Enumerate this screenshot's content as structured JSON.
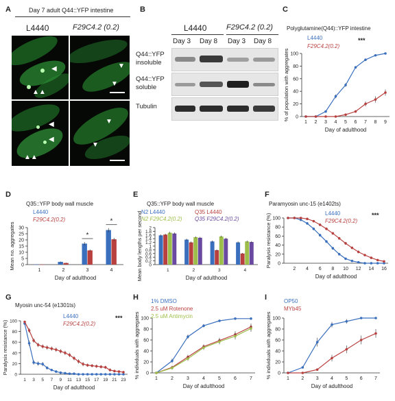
{
  "panelA": {
    "label": "A",
    "title": "Day 7 adult Q44::YFP intestine",
    "col1": "L4440",
    "col2": "F29C4.2 (0.2)"
  },
  "panelB": {
    "label": "B",
    "group1": "L4440",
    "group2": "F29C4.2 (0.2)",
    "lanes": [
      "Day 3",
      "Day 8",
      "Day 3",
      "Day 8"
    ],
    "rows": [
      "Q44::YFP insoluble",
      "Q44::YFP soluble",
      "Tubulin"
    ]
  },
  "colors": {
    "blue": "#3a6fbe",
    "red": "#b8403f",
    "green": "#9dbf4a",
    "purple": "#6a4aa0",
    "grey": "#9a9a9a"
  },
  "chart_data": [
    {
      "panel": "C",
      "type": "line",
      "title": "Polyglutamine(Q44)::YFP intestine",
      "xlabel": "Day of adulthood",
      "ylabel": "% of population with aggregates",
      "x": [
        1,
        2,
        3,
        4,
        5,
        6,
        7,
        8,
        9
      ],
      "ylim": [
        0,
        100
      ],
      "yticks": [
        0,
        20,
        40,
        60,
        80,
        100
      ],
      "significance": "***",
      "series": [
        {
          "name": "L4440",
          "color": "#3a6fbe",
          "values": [
            0,
            0,
            8,
            32,
            50,
            78,
            90,
            97,
            100
          ],
          "err": [
            0,
            0,
            1,
            3,
            3,
            2,
            1,
            1,
            0
          ]
        },
        {
          "name": "F29C4.2(0.2)",
          "color": "#b8403f",
          "values": [
            0,
            0,
            0,
            0,
            3,
            8,
            20,
            27,
            38
          ],
          "err": [
            0,
            0,
            0,
            0,
            1,
            2,
            4,
            5,
            5
          ]
        }
      ]
    },
    {
      "panel": "D",
      "type": "bar",
      "title": "Q35::YFP body wall muscle",
      "xlabel": "Day of adulthood",
      "ylabel": "Mean no. aggregates",
      "categories": [
        "1",
        "2",
        "3",
        "4"
      ],
      "ylim": [
        0,
        30
      ],
      "yticks": [
        0,
        5,
        10,
        15,
        20,
        25,
        30
      ],
      "significance": [
        "",
        "",
        "*",
        "*"
      ],
      "series": [
        {
          "name": "L4440",
          "color": "#3a6fbe",
          "values": [
            0.1,
            2.2,
            17,
            28
          ],
          "err": [
            0.1,
            0.3,
            1.3,
            1.6
          ]
        },
        {
          "name": "F29C4.2(0.2)",
          "color": "#b8403f",
          "values": [
            0.1,
            1.3,
            11.5,
            20.5
          ],
          "err": [
            0.1,
            0.3,
            0.8,
            1.2
          ]
        }
      ]
    },
    {
      "panel": "E",
      "type": "bar",
      "title": "Q35::YFP body wall muscle",
      "xlabel": "Day of adulthood",
      "ylabel": "Mean body lengths per second",
      "categories": [
        "1",
        "2",
        "3",
        "4"
      ],
      "ylim": [
        0,
        2.0
      ],
      "yticks": [
        0,
        0.2,
        0.4,
        0.6,
        0.8,
        1.0,
        1.2,
        1.4,
        1.6,
        1.8,
        2.0
      ],
      "series": [
        {
          "name": "N2 L4440",
          "color": "#3a6fbe",
          "values": [
            1.58,
            1.35,
            1.25,
            1.2
          ],
          "err": [
            0.05,
            0.05,
            0.05,
            0.05
          ]
        },
        {
          "name": "Q35 L4440",
          "color": "#b8403f",
          "values": [
            1.62,
            1.2,
            0.78,
            0.6
          ],
          "err": [
            0.05,
            0.05,
            0.04,
            0.03
          ]
        },
        {
          "name": "N2 F29C4.2(0.2)",
          "color": "#9dbf4a",
          "values": [
            1.72,
            1.48,
            1.52,
            1.25
          ],
          "err": [
            0.06,
            0.05,
            0.05,
            0.05
          ]
        },
        {
          "name": "Q35 F29C4.2(0.2)",
          "color": "#6a4aa0",
          "values": [
            1.68,
            1.45,
            1.4,
            1.22
          ],
          "err": [
            0.06,
            0.05,
            0.05,
            0.05
          ]
        }
      ]
    },
    {
      "panel": "F",
      "type": "line",
      "title": "Paramyosin unc-15 (e1402ts)",
      "xlabel": "Day of adulthood",
      "ylabel": "Paralysis resistance (%)",
      "x": [
        1,
        2,
        3,
        4,
        5,
        6,
        7,
        8,
        9,
        10,
        11,
        12,
        13,
        14,
        15,
        16
      ],
      "xticks": [
        2,
        4,
        6,
        8,
        10,
        12,
        14,
        16
      ],
      "ylim": [
        0,
        100
      ],
      "yticks": [
        0,
        20,
        40,
        60,
        80,
        100
      ],
      "significance": "***",
      "series": [
        {
          "name": "L4440",
          "color": "#3a6fbe",
          "values": [
            100,
            100,
            96,
            88,
            76,
            62,
            48,
            33,
            20,
            10,
            5,
            2,
            0,
            0,
            0,
            0
          ],
          "err": [
            0,
            0,
            2,
            3,
            3,
            3,
            3,
            3,
            3,
            2,
            2,
            1,
            0,
            0,
            0,
            0
          ]
        },
        {
          "name": "F29C4.2(0.2)",
          "color": "#b8403f",
          "values": [
            100,
            100,
            100,
            98,
            93,
            85,
            76,
            66,
            55,
            44,
            34,
            25,
            18,
            12,
            7,
            4
          ],
          "err": [
            0,
            0,
            0,
            1,
            2,
            3,
            3,
            3,
            3,
            3,
            3,
            3,
            2,
            2,
            2,
            1
          ]
        }
      ]
    },
    {
      "panel": "G",
      "type": "line",
      "title": "Myosin unc-54 (e1301ts)",
      "xlabel": "Day of adulthood",
      "ylabel": "Paralysis resistance (%)",
      "x": [
        1,
        2,
        3,
        4,
        5,
        6,
        7,
        8,
        9,
        10,
        11,
        12,
        13,
        14,
        15,
        16,
        17,
        18,
        19,
        20,
        21,
        22,
        23
      ],
      "xticks": [
        1,
        3,
        5,
        7,
        9,
        11,
        13,
        15,
        17,
        19,
        21,
        23
      ],
      "ylim": [
        0,
        100
      ],
      "yticks": [
        0,
        20,
        40,
        60,
        80,
        100
      ],
      "significance": "***",
      "series": [
        {
          "name": "L4440",
          "color": "#3a6fbe",
          "values": [
            95,
            58,
            22,
            20,
            19,
            12,
            8,
            5,
            3,
            2,
            1,
            1,
            0,
            0,
            0,
            0,
            0,
            0,
            0,
            0,
            0,
            0,
            0
          ],
          "err": [
            3,
            5,
            4,
            4,
            4,
            3,
            2,
            2,
            1,
            1,
            1,
            1,
            0,
            0,
            0,
            0,
            0,
            0,
            0,
            0,
            0,
            0,
            0
          ]
        },
        {
          "name": "F29C4.2(0.2)",
          "color": "#b8403f",
          "values": [
            98,
            82,
            63,
            55,
            52,
            50,
            48,
            46,
            43,
            40,
            36,
            30,
            24,
            19,
            17,
            16,
            15,
            14,
            13,
            8,
            6,
            5,
            4
          ],
          "err": [
            2,
            4,
            4,
            4,
            4,
            4,
            4,
            4,
            4,
            4,
            4,
            4,
            4,
            4,
            3,
            3,
            3,
            3,
            3,
            3,
            2,
            2,
            2
          ]
        }
      ]
    },
    {
      "panel": "H",
      "type": "line",
      "title": "",
      "xlabel": "Day of adulthood",
      "ylabel": "% individuals with aggregates",
      "x": [
        1,
        2,
        3,
        4,
        5,
        6,
        7
      ],
      "ylim": [
        0,
        100
      ],
      "yticks": [
        0,
        20,
        40,
        60,
        80,
        100
      ],
      "series": [
        {
          "name": "1% DMSO",
          "color": "#3a6fbe",
          "values": [
            0,
            22,
            66,
            86,
            95,
            99,
            99
          ],
          "err": [
            0,
            4,
            4,
            3,
            2,
            1,
            1
          ]
        },
        {
          "name": "2.5 uM Rotenone",
          "color": "#b8403f",
          "values": [
            0,
            10,
            29,
            48,
            59,
            70,
            84
          ],
          "err": [
            0,
            3,
            4,
            4,
            5,
            6,
            6
          ]
        },
        {
          "name": "2.5 uM Antimycin",
          "color": "#9dbf4a",
          "values": [
            0,
            9,
            26,
            46,
            57,
            67,
            81
          ],
          "err": [
            0,
            3,
            4,
            4,
            5,
            6,
            6
          ]
        }
      ]
    },
    {
      "panel": "I",
      "type": "line",
      "title": "",
      "xlabel": "Day of adulthood",
      "ylabel": "% individuals with aggregates",
      "x": [
        1,
        2,
        3,
        4,
        5,
        6,
        7
      ],
      "ylim": [
        0,
        100
      ],
      "yticks": [
        0,
        20,
        40,
        60,
        80,
        100
      ],
      "series": [
        {
          "name": "OP50",
          "color": "#3a6fbe",
          "values": [
            0,
            10,
            56,
            88,
            94,
            100,
            100
          ],
          "err": [
            0,
            2,
            8,
            5,
            4,
            0,
            0
          ]
        },
        {
          "name": "MYb45",
          "color": "#b8403f",
          "values": [
            0,
            0,
            6,
            27,
            43,
            60,
            72
          ],
          "err": [
            0,
            0,
            2,
            6,
            7,
            8,
            8
          ]
        }
      ]
    }
  ]
}
